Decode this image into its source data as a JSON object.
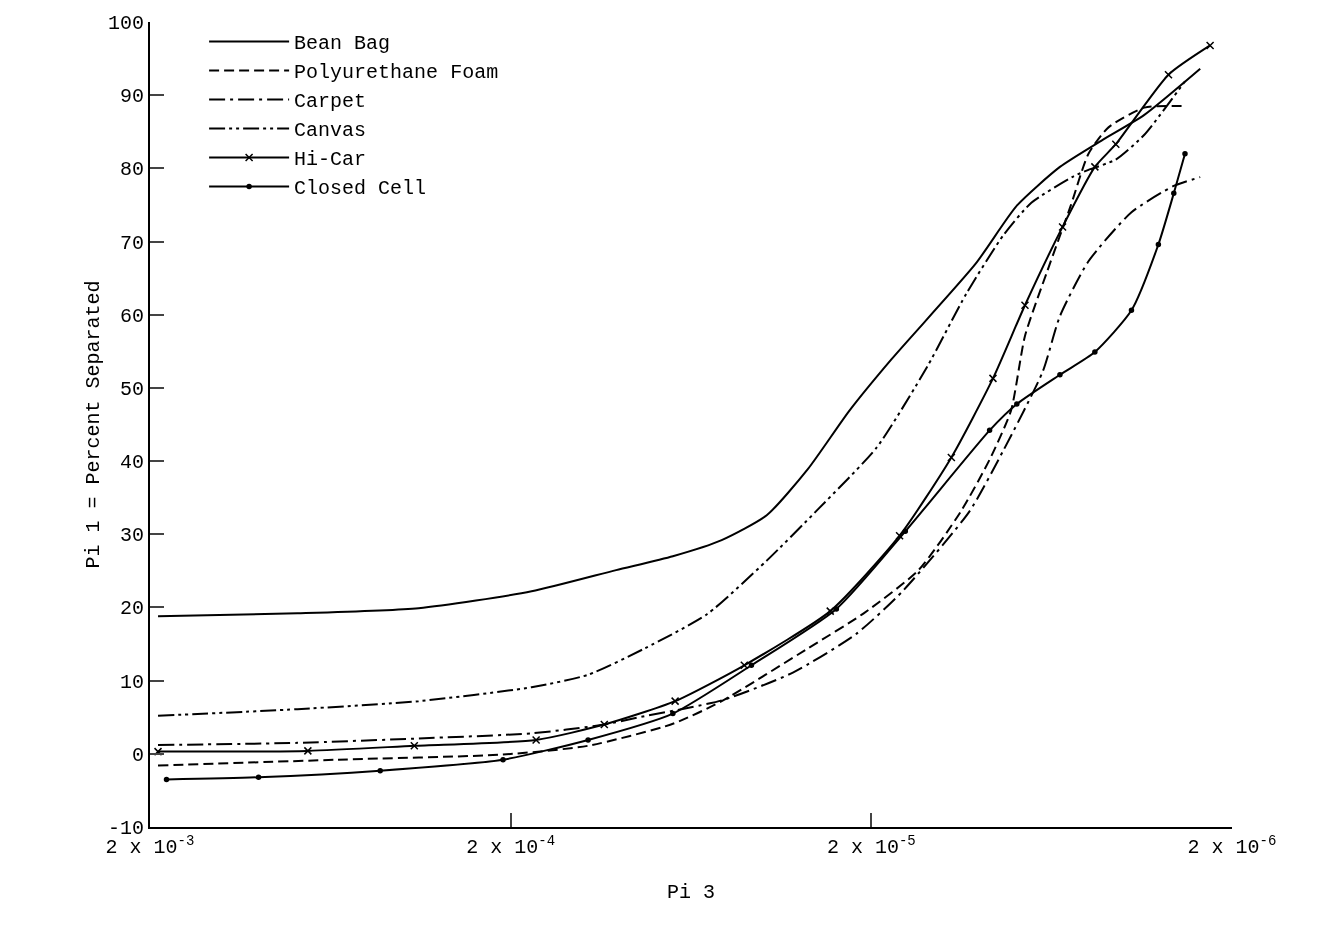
{
  "chart_data": {
    "type": "line",
    "xlabel": "Pi 3",
    "ylabel": "Pi 1 = Percent Separated",
    "log": "x",
    "grid": false,
    "legend": "top left",
    "xlim": [
      0.002,
      2e-06
    ],
    "xticks": [
      {
        "value": 0.002,
        "label": "2 x 10$^{-3}$"
      },
      {
        "value": 0.0002,
        "label": "2 x 10$^{-4}$"
      },
      {
        "value": 2e-05,
        "label": "2 x 10$^{-5}$"
      },
      {
        "value": 2e-06,
        "label": "2 x 10$^{-6}$"
      }
    ],
    "ylim": [
      -10,
      100
    ],
    "yticks": [
      -10,
      0,
      10,
      20,
      30,
      40,
      50,
      60,
      70,
      80,
      90,
      100
    ],
    "series": [
      {
        "name": "Bean Bag",
        "color": "#000000",
        "line_style": "solid",
        "marker": "none",
        "x": [
          0.0019,
          0.00078,
          0.00036,
          0.000175,
          0.000102,
          7.1e-05,
          5.2e-05,
          3.9e-05,
          3e-05,
          2.3e-05,
          1.76e-05,
          1.03e-05,
          7.9e-06,
          6e-06,
          4.6e-06,
          3.5e-06,
          2.45e-06
        ],
        "values": [
          18.8,
          19.2,
          19.9,
          22.2,
          25.1,
          27,
          29.2,
          32.6,
          38.9,
          46.9,
          53.9,
          66.9,
          74.9,
          80.2,
          83.8,
          87.3,
          93.6
        ]
      },
      {
        "name": "Polyurethane Foam",
        "color": "#000000",
        "line_style": "dashed",
        "marker": "none",
        "x": [
          0.0019,
          0.0006,
          0.00021,
          0.000122,
          7.1e-05,
          5.2e-05,
          3e-05,
          2.1e-05,
          1.48e-05,
          1.13e-05,
          9.4e-06,
          8.2e-06,
          7.5e-06,
          6.5e-06,
          5.6e-06,
          5e-06,
          4.4e-06,
          3.5e-06,
          2.7e-06
        ],
        "values": [
          -1.6,
          -0.8,
          -0.1,
          1.1,
          4.1,
          7.2,
          14.4,
          19.2,
          25.1,
          33.1,
          40.2,
          46.9,
          57.1,
          66,
          74.9,
          82,
          85.6,
          88.3,
          88.5
        ]
      },
      {
        "name": "Carpet",
        "color": "#000000",
        "line_style": "dashdot",
        "marker": "none",
        "x": [
          0.0019,
          0.00078,
          0.00036,
          0.000175,
          0.00011,
          8.8e-05,
          5.2e-05,
          3.3e-05,
          2.2e-05,
          1.64e-05,
          1.07e-05,
          8.6e-06,
          6.7e-06,
          6e-06,
          5e-06,
          3.8e-06,
          2.9e-06,
          2.45e-06
        ],
        "values": [
          1.2,
          1.5,
          2.1,
          2.8,
          4,
          5,
          7.3,
          11.1,
          16.4,
          22.2,
          33.1,
          41.5,
          52.2,
          59.8,
          67.3,
          74,
          77.6,
          78.8
        ]
      },
      {
        "name": "Canvas",
        "color": "#000000",
        "line_style": "dashdotdot",
        "marker": "none",
        "x": [
          0.0019,
          0.00078,
          0.00036,
          0.000175,
          0.000122,
          8.5e-05,
          5.7e-05,
          3.9e-05,
          2.8e-05,
          1.93e-05,
          1.4e-05,
          1.09e-05,
          8.6e-06,
          7.2e-06,
          5.5e-06,
          5e-06,
          4.2e-06,
          3.5e-06,
          2.7e-06
        ],
        "values": [
          5.2,
          6.1,
          7.2,
          9.1,
          10.8,
          14.4,
          19.1,
          26.4,
          33.5,
          41.9,
          52.9,
          62.9,
          70.9,
          75.3,
          78.9,
          79.8,
          81.2,
          84.6,
          91.9
        ]
      },
      {
        "name": "Hi-Car",
        "color": "#000000",
        "line_style": "solid",
        "marker": "cross",
        "x": [
          0.0019,
          0.00073,
          0.00037,
          0.00017,
          0.00011,
          7e-05,
          4.5e-05,
          2.6e-05,
          1.67e-05,
          1.2e-05,
          9.2e-06,
          7.5e-06,
          5.9e-06,
          4.8e-06,
          4.2e-06,
          3e-06,
          2.3e-06
        ],
        "values": [
          0.3,
          0.4,
          1.1,
          1.9,
          4,
          7.2,
          12.1,
          19.5,
          29.8,
          40.5,
          51.3,
          61.3,
          72,
          80.2,
          83.3,
          92.8,
          96.8
        ]
      },
      {
        "name": "Closed Cell",
        "color": "#000000",
        "line_style": "solid",
        "marker": "circle",
        "x": [
          0.0018,
          0.001,
          0.00046,
          0.00021,
          0.000122,
          7.1e-05,
          4.3e-05,
          2.5e-05,
          1.61e-05,
          9.4e-06,
          7.9e-06,
          6e-06,
          4.8e-06,
          3.8e-06,
          3.2e-06,
          2.9e-06,
          2.7e-06
        ],
        "values": [
          -3.5,
          -3.2,
          -2.3,
          -0.8,
          1.9,
          5.5,
          12.1,
          19.8,
          30.4,
          44.2,
          47.8,
          51.8,
          54.9,
          60.6,
          69.6,
          76.6,
          82
        ]
      }
    ]
  }
}
